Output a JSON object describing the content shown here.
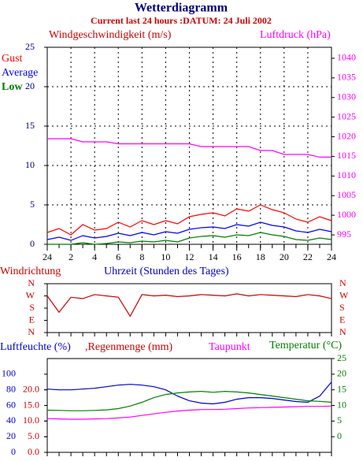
{
  "chart_data": [
    {
      "type": "line",
      "title": "Wetterdiagramm",
      "subtitle": "Current last 24 hours :DATUM: 24 Juli 2002",
      "y_label": "Windgeschwindigkeit (m/s)",
      "y2_label": "Luftdruck (hPa)",
      "x": [
        0,
        1,
        2,
        3,
        4,
        5,
        6,
        7,
        8,
        9,
        10,
        11,
        12,
        13,
        14,
        15,
        16,
        17,
        18,
        19,
        20,
        21,
        22,
        23,
        24
      ],
      "xlim": [
        0,
        24
      ],
      "xticks": [
        {
          "value": 0,
          "label": "24"
        },
        2,
        4,
        6,
        8,
        10,
        12,
        14,
        16,
        18,
        20,
        22,
        {
          "value": 24,
          "label": "24"
        }
      ],
      "ylim": [
        0,
        25
      ],
      "yticks": [
        0,
        5,
        10,
        15,
        20,
        25
      ],
      "ytick_color": "#000080",
      "y2lim": [
        992.6,
        1042.8
      ],
      "y2ticks": [
        995,
        1000,
        1005,
        1010,
        1015,
        1020,
        1025,
        1030,
        1035,
        1040
      ],
      "y2tick_color": "#ff00ff",
      "grid": true,
      "series": [
        {
          "name": "Gust",
          "color": "#ff0000",
          "values": [
            1.5,
            2,
            1.2,
            2.5,
            1.8,
            2,
            2.8,
            2.2,
            3,
            2.5,
            3,
            2.6,
            3.5,
            3.8,
            4,
            3.6,
            4.5,
            4.2,
            5,
            4.4,
            4,
            3.2,
            2.8,
            3.5,
            3
          ]
        },
        {
          "name": "Average",
          "color": "#0000ff",
          "values": [
            0.6,
            0.9,
            0.5,
            1.1,
            0.8,
            1,
            1.4,
            1.1,
            1.5,
            1.2,
            1.6,
            1.4,
            1.9,
            2.1,
            2.2,
            2,
            2.5,
            2.3,
            2.8,
            2.4,
            2.2,
            1.7,
            1.5,
            1.9,
            1.6
          ]
        },
        {
          "name": "Low",
          "color": "#008000",
          "values": [
            0,
            0,
            0,
            0.2,
            0,
            0.1,
            0.3,
            0.2,
            0.4,
            0.3,
            0.5,
            0.3,
            0.8,
            1,
            1.1,
            0.9,
            1.2,
            1.1,
            1.5,
            1.2,
            1,
            0.6,
            0.5,
            0.8,
            0.6
          ]
        },
        {
          "color": "#ff00ff",
          "axis": "y2",
          "values": [
            1019.5,
            1019.5,
            1019.5,
            1018.7,
            1018.7,
            1018.7,
            1018.2,
            1018.2,
            1018.2,
            1018.2,
            1018.2,
            1018.2,
            1018.2,
            1017.5,
            1017.5,
            1017.5,
            1017.5,
            1017.5,
            1016.5,
            1016.5,
            1015.5,
            1015.5,
            1015.5,
            1014.8,
            1014.8
          ]
        }
      ]
    },
    {
      "type": "line",
      "y_label": "Windrichtung",
      "x_label": "Uhrzeit (Stunden des Tages)",
      "x": [
        0,
        1,
        2,
        3,
        4,
        5,
        6,
        7,
        8,
        9,
        10,
        11,
        12,
        13,
        14,
        15,
        16,
        17,
        18,
        19,
        20,
        21,
        22,
        23,
        24
      ],
      "xlim": [
        0,
        24
      ],
      "ylim": [
        0,
        360
      ],
      "yticks": [
        {
          "value": 0,
          "label": "N"
        },
        {
          "value": 90,
          "label": "E"
        },
        {
          "value": 180,
          "label": "S"
        },
        {
          "value": 270,
          "label": "W"
        },
        {
          "value": 360,
          "label": "N"
        }
      ],
      "ytick_color": "#cc0000",
      "grid": false,
      "series": [
        {
          "color": "#cc0000",
          "values": [
            270,
            150,
            260,
            250,
            280,
            270,
            260,
            120,
            280,
            270,
            275,
            265,
            270,
            280,
            275,
            270,
            285,
            270,
            280,
            275,
            270,
            265,
            280,
            270,
            250
          ]
        }
      ]
    },
    {
      "type": "line",
      "y_label": "Luftfeuchte (%)",
      "rain_label": ",Regenmenge (mm)",
      "x": [
        0,
        1,
        2,
        3,
        4,
        5,
        6,
        7,
        8,
        9,
        10,
        11,
        12,
        13,
        14,
        15,
        16,
        17,
        18,
        19,
        20,
        21,
        22,
        23,
        24
      ],
      "xlim": [
        0,
        24
      ],
      "ylim": [
        0,
        120
      ],
      "yticks": [
        0,
        20,
        40,
        60,
        80,
        100
      ],
      "ytick_color": "#0000cc",
      "rain_ylim": [
        0,
        30
      ],
      "rain_yticks": [
        {
          "value": 0,
          "label": "0.0"
        },
        {
          "value": 5,
          "label": "5.0"
        },
        {
          "value": 10,
          "label": "10.0"
        },
        {
          "value": 15,
          "label": "15.0"
        },
        {
          "value": 20,
          "label": "20.0"
        }
      ],
      "rain_tick_color": "#cc0000",
      "y2lim": [
        -5,
        25
      ],
      "y2ticks": [
        0,
        5,
        10,
        15,
        20,
        25
      ],
      "y2tick_color": "#008000",
      "grid": false,
      "series": [
        {
          "color": "#0000cc",
          "values": [
            81,
            80,
            80,
            81,
            82,
            84,
            86,
            87,
            86,
            84,
            80,
            72,
            66,
            63,
            62,
            64,
            68,
            70,
            70,
            69,
            67,
            65,
            64,
            72,
            90
          ]
        },
        {
          "name": "Taupunkt",
          "color": "#ff00ff",
          "axis": "y2",
          "values": [
            5.8,
            5.7,
            5.6,
            5.6,
            5.7,
            5.8,
            6,
            6.3,
            6.8,
            7.3,
            7.8,
            8.2,
            8.5,
            8.7,
            8.7,
            8.8,
            9,
            9.2,
            9.3,
            9.4,
            9.5,
            9.6,
            9.7,
            9.7,
            9.8
          ]
        },
        {
          "name": "Temperatur (°C)",
          "color": "#008000",
          "axis": "y2",
          "values": [
            8.5,
            8.4,
            8.3,
            8.3,
            8.4,
            8.6,
            9,
            9.8,
            11,
            12.5,
            13.5,
            14,
            14.3,
            14.5,
            14.2,
            14.5,
            14.3,
            14,
            13.5,
            13,
            12.5,
            12,
            11.5,
            11.3,
            11
          ]
        }
      ]
    }
  ]
}
